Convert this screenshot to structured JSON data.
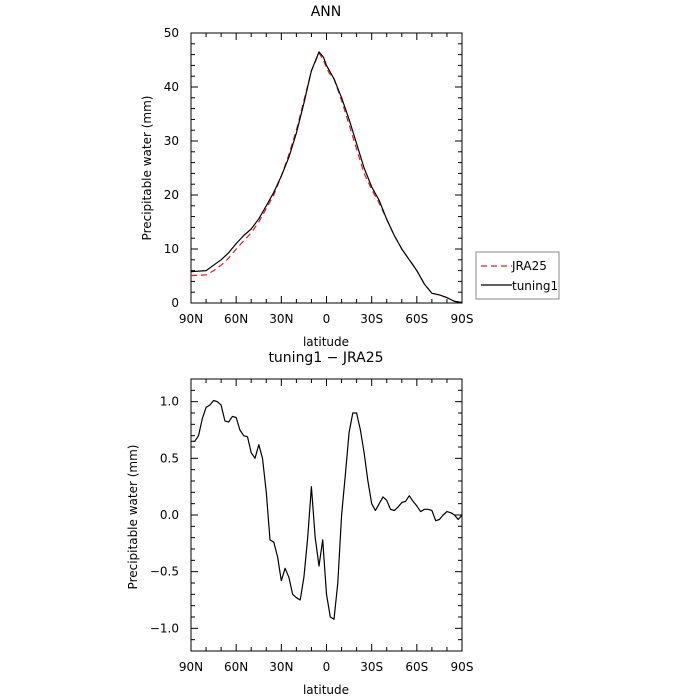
{
  "chart_data": [
    {
      "type": "line",
      "title": "ANN",
      "xlabel": "latitude",
      "ylabel": "Precipitable water  (mm)",
      "xlim": [
        90,
        -90
      ],
      "ylim": [
        0,
        50
      ],
      "x_ticks": [
        90,
        60,
        30,
        0,
        -30,
        -60,
        -90
      ],
      "x_tick_labels": [
        "90N",
        "60N",
        "30N",
        "0",
        "30S",
        "60S",
        "90S"
      ],
      "y_ticks": [
        0,
        10,
        20,
        30,
        40,
        50
      ],
      "y_tick_labels": [
        "0",
        "10",
        "20",
        "30",
        "40",
        "50"
      ],
      "legend_position": "right",
      "series": [
        {
          "name": "JRA25",
          "color": "#e41a1c",
          "dash": "dashed",
          "x": [
            90,
            80,
            75,
            70,
            65,
            60,
            55,
            50,
            45,
            40,
            35,
            30,
            25,
            20,
            15,
            10,
            5,
            2,
            0,
            -2,
            -5,
            -10,
            -15,
            -20,
            -25,
            -30,
            -35,
            -40,
            -45,
            -50,
            -55,
            -60,
            -65,
            -70,
            -75,
            -80,
            -85,
            -90
          ],
          "y": [
            5.1,
            5.2,
            6.0,
            7.0,
            8.3,
            10.0,
            11.5,
            13.0,
            15.0,
            17.5,
            20.0,
            23.5,
            27.5,
            32.0,
            37.5,
            43.0,
            46.3,
            45.0,
            43.5,
            42.5,
            41.5,
            37.5,
            33.0,
            28.5,
            24.0,
            21.0,
            18.5,
            15.5,
            12.5,
            10.0,
            8.0,
            6.0,
            3.5,
            1.8,
            1.5,
            1.0,
            0.3,
            0.1
          ]
        },
        {
          "name": "tuning1",
          "color": "#000000",
          "dash": "solid",
          "x": [
            90,
            80,
            75,
            70,
            65,
            60,
            55,
            50,
            45,
            40,
            35,
            30,
            25,
            20,
            15,
            10,
            5,
            2,
            0,
            -2,
            -5,
            -10,
            -15,
            -20,
            -25,
            -30,
            -35,
            -40,
            -45,
            -50,
            -55,
            -60,
            -65,
            -70,
            -75,
            -80,
            -85,
            -90
          ],
          "y": [
            5.8,
            6.0,
            7.0,
            8.0,
            9.3,
            11.0,
            12.5,
            13.7,
            15.6,
            18.0,
            20.5,
            23.5,
            27.0,
            31.5,
            37.0,
            43.0,
            46.5,
            45.5,
            44.0,
            43.0,
            41.5,
            38.0,
            34.0,
            29.5,
            25.0,
            21.5,
            19.0,
            15.5,
            12.5,
            10.0,
            8.0,
            6.0,
            3.5,
            1.8,
            1.5,
            1.0,
            0.3,
            0.1
          ]
        }
      ]
    },
    {
      "type": "line",
      "title": "tuning1 − JRA25",
      "xlabel": "latitude",
      "ylabel": "Precipitable water  (mm)",
      "xlim": [
        90,
        -90
      ],
      "ylim": [
        -1.2,
        1.2
      ],
      "x_ticks": [
        90,
        60,
        30,
        0,
        -30,
        -60,
        -90
      ],
      "x_tick_labels": [
        "90N",
        "60N",
        "30N",
        "0",
        "30S",
        "60S",
        "90S"
      ],
      "y_ticks": [
        -1.0,
        -0.5,
        0.0,
        0.5,
        1.0
      ],
      "y_tick_labels": [
        "−1.0",
        "−0.5",
        "0.0",
        "0.5",
        "1.0"
      ],
      "series": [
        {
          "color": "#000000",
          "dash": "solid",
          "x": [
            90,
            87.5,
            85,
            82.5,
            80,
            77.5,
            75,
            72.5,
            70,
            67.5,
            65,
            62.5,
            60,
            57.5,
            55,
            52.5,
            50,
            47.5,
            45,
            42.5,
            40,
            37.5,
            35,
            32.5,
            30,
            27.5,
            25,
            22.5,
            20,
            17.5,
            15,
            12.5,
            10,
            7.5,
            5,
            2.5,
            0,
            -2.5,
            -5,
            -7.5,
            -10,
            -12.5,
            -15,
            -17.5,
            -20,
            -22.5,
            -25,
            -27.5,
            -30,
            -32.5,
            -35,
            -37.5,
            -40,
            -42.5,
            -45,
            -47.5,
            -50,
            -52.5,
            -55,
            -57.5,
            -60,
            -62.5,
            -65,
            -67.5,
            -70,
            -72.5,
            -75,
            -77.5,
            -80,
            -82.5,
            -85,
            -87.5,
            -90
          ],
          "y": [
            0.65,
            0.65,
            0.7,
            0.85,
            0.95,
            0.97,
            1.01,
            1.0,
            0.97,
            0.83,
            0.82,
            0.87,
            0.86,
            0.75,
            0.7,
            0.69,
            0.55,
            0.5,
            0.62,
            0.5,
            0.2,
            -0.22,
            -0.24,
            -0.37,
            -0.58,
            -0.47,
            -0.55,
            -0.7,
            -0.73,
            -0.75,
            -0.55,
            -0.2,
            0.25,
            -0.2,
            -0.45,
            -0.22,
            -0.7,
            -0.9,
            -0.92,
            -0.6,
            0.0,
            0.35,
            0.73,
            0.9,
            0.9,
            0.75,
            0.55,
            0.3,
            0.1,
            0.04,
            0.1,
            0.16,
            0.13,
            0.05,
            0.04,
            0.07,
            0.11,
            0.12,
            0.17,
            0.12,
            0.08,
            0.03,
            0.05,
            0.05,
            0.04,
            -0.05,
            -0.04,
            0.0,
            0.03,
            0.02,
            0.0,
            -0.04,
            0.0
          ]
        }
      ]
    }
  ]
}
